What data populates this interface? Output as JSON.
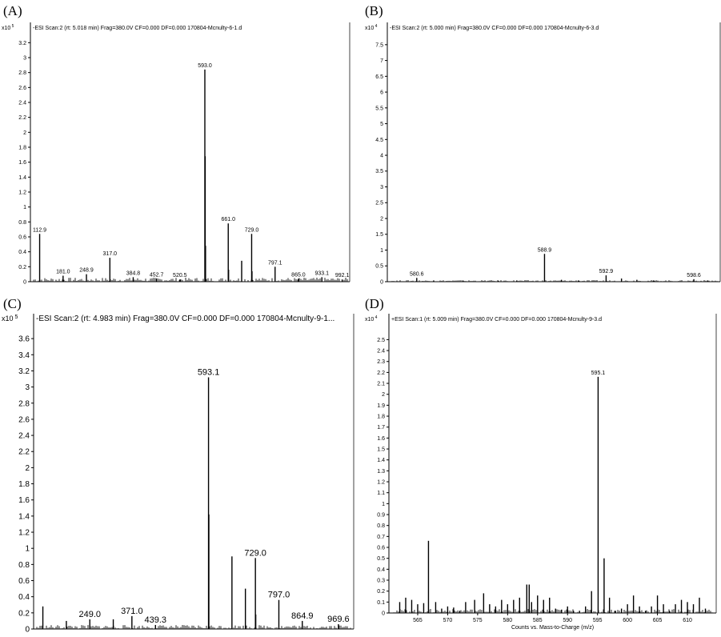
{
  "panels": [
    {
      "letter": "(A)",
      "header": "-ESI Scan:2 (rt: 5.018 min) Frag=380.0V CF=0.000 DF=0.000 170804-Mcnulty-6-1.d",
      "chart_data": {
        "type": "bar",
        "exponent_label": "x10 5",
        "ylim": [
          0,
          3.3
        ],
        "yticks": [
          0,
          0.2,
          0.4,
          0.6,
          0.8,
          1,
          1.2,
          1.4,
          1.6,
          1.8,
          2,
          2.2,
          2.4,
          2.6,
          2.8,
          3,
          3.2
        ],
        "xlim": [
          100,
          1000
        ],
        "xlabel": "",
        "peaks": [
          {
            "x": 112.9,
            "y": 0.64,
            "label": "112.9"
          },
          {
            "x": 181.0,
            "y": 0.08,
            "label": "181.0"
          },
          {
            "x": 248.9,
            "y": 0.1,
            "label": "248.9"
          },
          {
            "x": 317.0,
            "y": 0.32,
            "label": "317.0"
          },
          {
            "x": 384.8,
            "y": 0.06,
            "label": "384.8"
          },
          {
            "x": 452.7,
            "y": 0.04,
            "label": "452.7"
          },
          {
            "x": 520.5,
            "y": 0.03,
            "label": "520.5"
          },
          {
            "x": 593.0,
            "y": 2.84,
            "label": "593.0"
          },
          {
            "x": 594.0,
            "y": 1.68
          },
          {
            "x": 595.0,
            "y": 0.48
          },
          {
            "x": 661.0,
            "y": 0.78,
            "label": "661.0"
          },
          {
            "x": 662.0,
            "y": 0.16
          },
          {
            "x": 700.0,
            "y": 0.28
          },
          {
            "x": 729.0,
            "y": 0.64,
            "label": "729.0"
          },
          {
            "x": 730.0,
            "y": 0.14
          },
          {
            "x": 797.1,
            "y": 0.2,
            "label": "797.1"
          },
          {
            "x": 865.0,
            "y": 0.04,
            "label": "865.0"
          },
          {
            "x": 933.1,
            "y": 0.06,
            "label": "933.1"
          },
          {
            "x": 992.1,
            "y": 0.03,
            "label": "992.1"
          }
        ]
      }
    },
    {
      "letter": "(B)",
      "header": "-ESI Scan:2 (rt: 5.000 min) Frag=380.0V CF=0.000 DF=0.000 170804-Mcnulty-6-3.d",
      "chart_data": {
        "type": "bar",
        "exponent_label": "x10 4",
        "ylim": [
          0,
          7.8
        ],
        "yticks": [
          0,
          0.5,
          1,
          1.5,
          2,
          2.5,
          3,
          3.5,
          4,
          4.5,
          5,
          5.5,
          6,
          6.5,
          7,
          7.5
        ],
        "xlim": [
          579,
          600
        ],
        "xlabel": "",
        "peaks": [
          {
            "x": 580.6,
            "y": 0.12,
            "label": "580.6"
          },
          {
            "x": 581.7,
            "y": 0.04
          },
          {
            "x": 583.6,
            "y": 0.04
          },
          {
            "x": 585.9,
            "y": 0.03
          },
          {
            "x": 587.1,
            "y": 0.04
          },
          {
            "x": 588.9,
            "y": 0.88,
            "label": "588.9"
          },
          {
            "x": 590.0,
            "y": 0.06
          },
          {
            "x": 591.1,
            "y": 0.04
          },
          {
            "x": 592.9,
            "y": 0.2,
            "label": "592.9"
          },
          {
            "x": 593.9,
            "y": 0.1
          },
          {
            "x": 594.9,
            "y": 0.06
          },
          {
            "x": 596.0,
            "y": 0.04
          },
          {
            "x": 598.6,
            "y": 0.08,
            "label": "598.6"
          },
          {
            "x": 599.5,
            "y": 0.04
          }
        ]
      }
    },
    {
      "letter": "(C)",
      "header": "-ESI Scan:2 (rt: 4.983 min) Frag=380.0V CF=0.000 DF=0.000 170804-Mcnulty-9-1...",
      "chart_data": {
        "type": "bar",
        "exponent_label": "x10 5",
        "ylim": [
          0,
          3.75
        ],
        "yticks": [
          0,
          0.2,
          0.4,
          0.6,
          0.8,
          1,
          1.2,
          1.4,
          1.6,
          1.8,
          2,
          2.2,
          2.4,
          2.6,
          2.8,
          3,
          3.2,
          3.4,
          3.6
        ],
        "xlim": [
          100,
          1000
        ],
        "xlabel": "",
        "peaks": [
          {
            "x": 112.9,
            "y": 0.28
          },
          {
            "x": 181.0,
            "y": 0.1
          },
          {
            "x": 249.0,
            "y": 0.12,
            "label": "249.0"
          },
          {
            "x": 317.0,
            "y": 0.12
          },
          {
            "x": 371.0,
            "y": 0.16,
            "label": "371.0"
          },
          {
            "x": 439.3,
            "y": 0.05,
            "label": "439.3"
          },
          {
            "x": 593.1,
            "y": 3.12,
            "label": "593.1"
          },
          {
            "x": 594.1,
            "y": 1.42
          },
          {
            "x": 661.0,
            "y": 0.9
          },
          {
            "x": 700.0,
            "y": 0.5
          },
          {
            "x": 729.0,
            "y": 0.88,
            "label": "729.0"
          },
          {
            "x": 730.0,
            "y": 0.18
          },
          {
            "x": 797.0,
            "y": 0.36,
            "label": "797.0"
          },
          {
            "x": 864.9,
            "y": 0.1,
            "label": "864.9"
          },
          {
            "x": 969.6,
            "y": 0.06,
            "label": "969.6"
          }
        ]
      }
    },
    {
      "letter": "(D)",
      "header": "+ESI Scan:1 (rt: 5.009 min) Frag=380.0V CF=0.000 DF=0.000 170804-Mcnulty-9-3.d",
      "chart_data": {
        "type": "bar",
        "exponent_label": "x10 4",
        "ylim": [
          0,
          2.62
        ],
        "yticks": [
          0,
          0.1,
          0.2,
          0.3,
          0.4,
          0.5,
          0.6,
          0.7,
          0.8,
          0.9,
          1,
          1.1,
          1.2,
          1.3,
          1.4,
          1.5,
          1.6,
          1.7,
          1.8,
          1.9,
          2,
          2.1,
          2.2,
          2.3,
          2.4,
          2.5
        ],
        "xlim": [
          561,
          614
        ],
        "xticks": [
          565,
          570,
          575,
          580,
          585,
          590,
          595,
          600,
          605,
          610
        ],
        "xlabel": "Counts vs. Mass-to-Charge (m/z)",
        "peaks": [
          {
            "x": 562.0,
            "y": 0.1
          },
          {
            "x": 563.0,
            "y": 0.14
          },
          {
            "x": 564.0,
            "y": 0.12
          },
          {
            "x": 565.0,
            "y": 0.08
          },
          {
            "x": 566.0,
            "y": 0.09
          },
          {
            "x": 566.8,
            "y": 0.66
          },
          {
            "x": 568.0,
            "y": 0.1
          },
          {
            "x": 569.0,
            "y": 0.04
          },
          {
            "x": 570.0,
            "y": 0.06
          },
          {
            "x": 571.0,
            "y": 0.05
          },
          {
            "x": 572.0,
            "y": 0.02
          },
          {
            "x": 573.0,
            "y": 0.1
          },
          {
            "x": 574.5,
            "y": 0.12
          },
          {
            "x": 576.0,
            "y": 0.18
          },
          {
            "x": 577.0,
            "y": 0.08
          },
          {
            "x": 578.0,
            "y": 0.06
          },
          {
            "x": 579.0,
            "y": 0.12
          },
          {
            "x": 580.0,
            "y": 0.08
          },
          {
            "x": 581.0,
            "y": 0.12
          },
          {
            "x": 582.0,
            "y": 0.14
          },
          {
            "x": 583.2,
            "y": 0.26
          },
          {
            "x": 583.6,
            "y": 0.26
          },
          {
            "x": 584.0,
            "y": 0.1
          },
          {
            "x": 585.0,
            "y": 0.16
          },
          {
            "x": 586.0,
            "y": 0.12
          },
          {
            "x": 587.0,
            "y": 0.14
          },
          {
            "x": 588.0,
            "y": 0.04
          },
          {
            "x": 589.0,
            "y": 0.03
          },
          {
            "x": 590.0,
            "y": 0.06
          },
          {
            "x": 591.0,
            "y": 0.02
          },
          {
            "x": 592.0,
            "y": 0.02
          },
          {
            "x": 593.0,
            "y": 0.06
          },
          {
            "x": 594.0,
            "y": 0.2
          },
          {
            "x": 595.1,
            "y": 2.16,
            "label": "595.1"
          },
          {
            "x": 596.1,
            "y": 0.5
          },
          {
            "x": 597.0,
            "y": 0.14
          },
          {
            "x": 598.0,
            "y": 0.02
          },
          {
            "x": 599.0,
            "y": 0.04
          },
          {
            "x": 600.0,
            "y": 0.08
          },
          {
            "x": 601.0,
            "y": 0.16
          },
          {
            "x": 602.0,
            "y": 0.06
          },
          {
            "x": 603.0,
            "y": 0.02
          },
          {
            "x": 604.0,
            "y": 0.06
          },
          {
            "x": 605.0,
            "y": 0.16
          },
          {
            "x": 606.0,
            "y": 0.08
          },
          {
            "x": 607.0,
            "y": 0.02
          },
          {
            "x": 608.0,
            "y": 0.08
          },
          {
            "x": 609.0,
            "y": 0.12
          },
          {
            "x": 610.0,
            "y": 0.1
          },
          {
            "x": 611.0,
            "y": 0.08
          },
          {
            "x": 612.0,
            "y": 0.14
          },
          {
            "x": 613.0,
            "y": 0.04
          }
        ]
      }
    }
  ]
}
